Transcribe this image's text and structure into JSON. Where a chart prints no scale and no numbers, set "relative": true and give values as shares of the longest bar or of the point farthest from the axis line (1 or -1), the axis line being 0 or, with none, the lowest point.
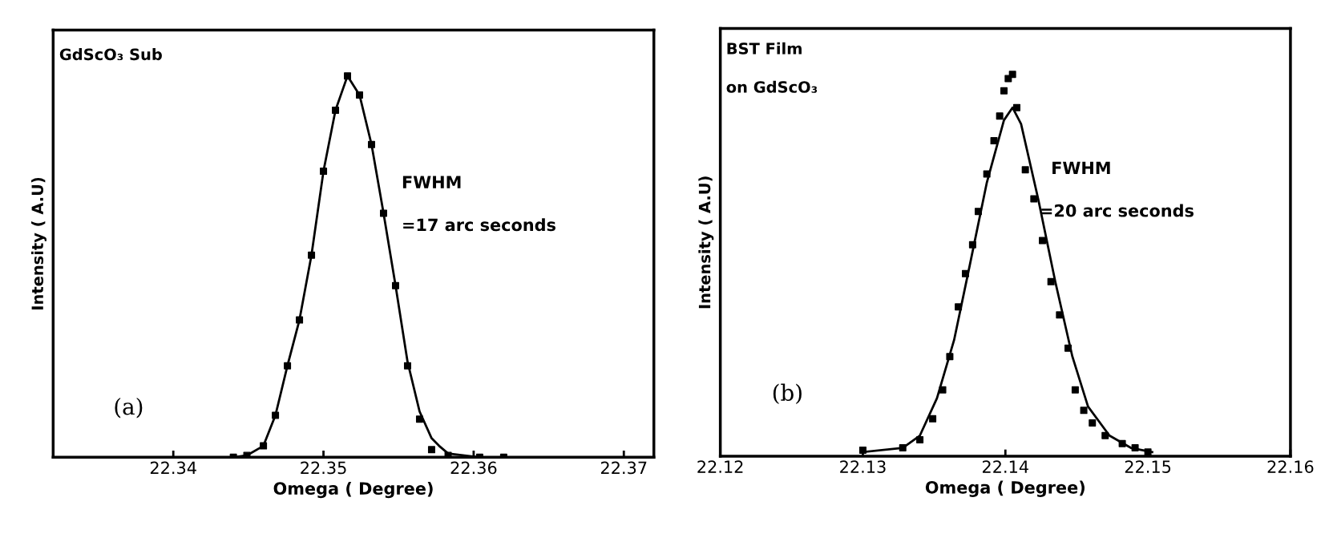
{
  "chart_data": [
    {
      "type": "line",
      "relative": true,
      "xlabel": "Omega ( Degree)",
      "ylabel": "Intensity ( A.U)",
      "xlim": [
        22.332,
        22.372
      ],
      "xticks": [
        22.34,
        22.35,
        22.36,
        22.37
      ],
      "grid": false,
      "legend": false,
      "tick_labels": "x",
      "annotations": [
        "GdScO₃ Sub",
        "FWHM",
        "=17 arc seconds",
        "(a)"
      ],
      "series": [
        {
          "type": "scatter",
          "marker": "square",
          "color": "#000000",
          "x": [
            22.344,
            22.3449,
            22.346,
            22.3468,
            22.3476,
            22.3484,
            22.3492,
            22.35,
            22.3508,
            22.3516,
            22.3524,
            22.3532,
            22.354,
            22.3548,
            22.3556,
            22.3564,
            22.3572,
            22.3583,
            22.3604,
            22.362
          ],
          "values": [
            0,
            0.005,
            0.03,
            0.11,
            0.24,
            0.36,
            0.53,
            0.75,
            0.91,
            1,
            0.95,
            0.82,
            0.64,
            0.45,
            0.24,
            0.1,
            0.02,
            0.005,
            0,
            0
          ]
        },
        {
          "marker": "none",
          "color": "#000000",
          "x": [
            22.344,
            22.3449,
            22.346,
            22.3468,
            22.3476,
            22.3484,
            22.3492,
            22.35,
            22.3508,
            22.3516,
            22.3524,
            22.3532,
            22.354,
            22.3548,
            22.3556,
            22.3564,
            22.3572,
            22.3577,
            22.3583,
            22.3604,
            22.362
          ],
          "values": [
            0,
            0.005,
            0.03,
            0.11,
            0.24,
            0.36,
            0.53,
            0.75,
            0.91,
            1,
            0.95,
            0.82,
            0.64,
            0.45,
            0.25,
            0.12,
            0.05,
            0.03,
            0.01,
            0,
            0
          ]
        }
      ]
    },
    {
      "type": "line",
      "relative": true,
      "xlabel": "Omega ( Degree)",
      "ylabel": "Intensity ( A.U)",
      "xlim": [
        22.12,
        22.16
      ],
      "xticks": [
        22.12,
        22.13,
        22.14,
        22.15,
        22.16
      ],
      "grid": false,
      "legend": false,
      "tick_labels": "x",
      "annotations": [
        "BST Film",
        "on GdScO₃",
        "FWHM",
        "=20 arc seconds",
        "(b)"
      ],
      "series": [
        {
          "type": "scatter",
          "marker": "square",
          "color": "#000000",
          "x": [
            22.13,
            22.1328,
            22.134,
            22.1349,
            22.1356,
            22.1361,
            22.1367,
            22.1372,
            22.1377,
            22.1381,
            22.1387,
            22.1392,
            22.1396,
            22.1399,
            22.1402,
            22.1405,
            22.1408,
            22.1414,
            22.142,
            22.1426,
            22.1432,
            22.1438,
            22.1444,
            22.1449,
            22.1455,
            22.1461,
            22.147,
            22.1482,
            22.1491,
            22.15
          ],
          "values": [
            0.016,
            0.022,
            0.043,
            0.098,
            0.174,
            0.261,
            0.391,
            0.478,
            0.554,
            0.641,
            0.739,
            0.826,
            0.891,
            0.957,
            0.989,
            1,
            0.913,
            0.75,
            0.674,
            0.565,
            0.457,
            0.37,
            0.283,
            0.174,
            0.12,
            0.087,
            0.054,
            0.033,
            0.022,
            0.011
          ]
        },
        {
          "marker": "none",
          "color": "#000000",
          "x": [
            22.13,
            22.1328,
            22.134,
            22.1352,
            22.1364,
            22.1375,
            22.1387,
            22.1399,
            22.1405,
            22.1411,
            22.1423,
            22.1435,
            22.1447,
            22.1458,
            22.1473,
            22.1488,
            22.1503
          ],
          "values": [
            0.011,
            0.022,
            0.054,
            0.152,
            0.304,
            0.5,
            0.717,
            0.88,
            0.913,
            0.87,
            0.674,
            0.457,
            0.261,
            0.13,
            0.054,
            0.022,
            0.011
          ]
        }
      ]
    }
  ]
}
